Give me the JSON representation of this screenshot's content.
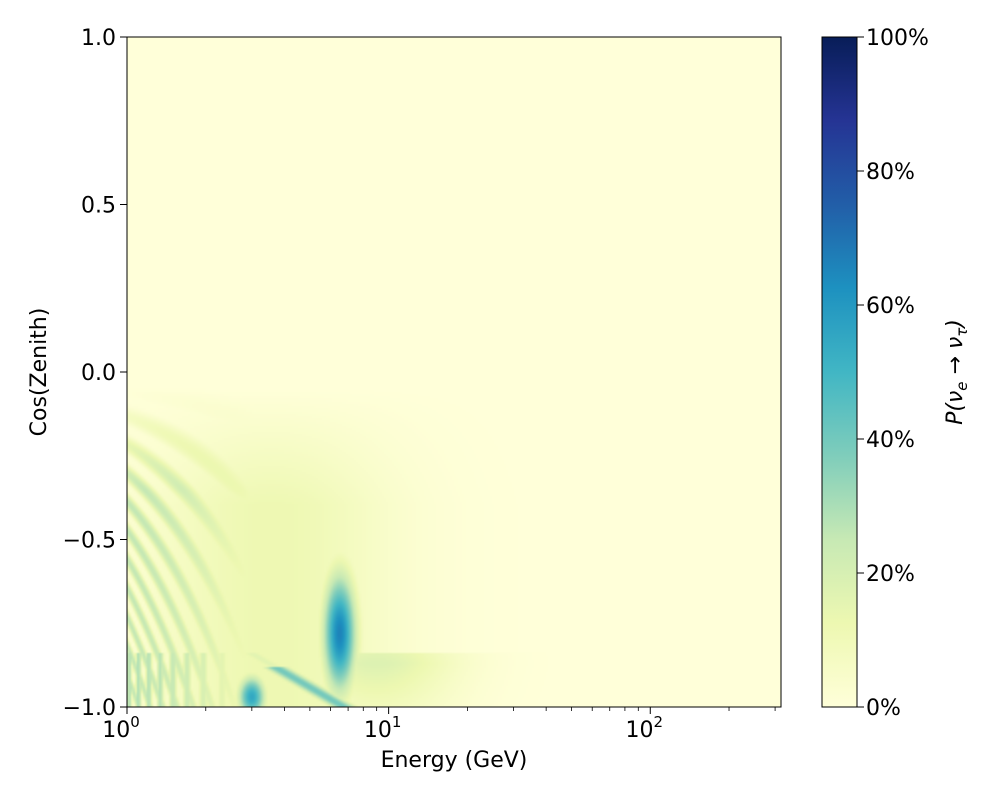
{
  "chart_data": {
    "type": "heatmap",
    "xlabel": "Energy (GeV)",
    "ylabel": "Cos(Zenith)",
    "x_scale": "log",
    "xlim": [
      1,
      316
    ],
    "ylim": [
      -1.0,
      1.0
    ],
    "x_ticks": [
      {
        "value": 1,
        "label": "10",
        "exp": "0"
      },
      {
        "value": 10,
        "label": "10",
        "exp": "1"
      },
      {
        "value": 100,
        "label": "10",
        "exp": "2"
      }
    ],
    "y_ticks": [
      {
        "value": 1.0,
        "label": "1.0"
      },
      {
        "value": 0.5,
        "label": "0.5"
      },
      {
        "value": 0.0,
        "label": "0.0"
      },
      {
        "value": -0.5,
        "label": "−0.5"
      },
      {
        "value": -1.0,
        "label": "−1.0"
      }
    ],
    "colorbar": {
      "label_prefix": "P(",
      "nu": "ν",
      "from_sub": "e",
      "arrow": "→",
      "to_sub": "τ",
      "label_suffix": ")",
      "range": [
        0,
        1
      ],
      "ticks": [
        {
          "value": 0.0,
          "label": "0%"
        },
        {
          "value": 0.2,
          "label": "20%"
        },
        {
          "value": 0.4,
          "label": "40%"
        },
        {
          "value": 0.6,
          "label": "60%"
        },
        {
          "value": 0.8,
          "label": "80%"
        },
        {
          "value": 1.0,
          "label": "100%"
        }
      ],
      "colormap": "YlGnBu",
      "colormap_stops": [
        "#ffffd9",
        "#edf8b1",
        "#c7e9b4",
        "#7fcdbb",
        "#41b6c4",
        "#1d91c0",
        "#225ea8",
        "#253494",
        "#081d58"
      ]
    },
    "features": [
      {
        "name": "resonance peak",
        "energy_gev": 6.5,
        "cos_zenith": -0.78,
        "probability": 0.65
      },
      {
        "name": "core resonance band",
        "energy_gev": 3.0,
        "cos_zenith": -0.97,
        "probability": 0.5
      },
      {
        "name": "low-energy oscillation bands",
        "energy_range_gev": [
          1,
          4
        ],
        "cos_zenith_range": [
          -1.0,
          -0.1
        ],
        "probability": 0.25
      }
    ]
  }
}
